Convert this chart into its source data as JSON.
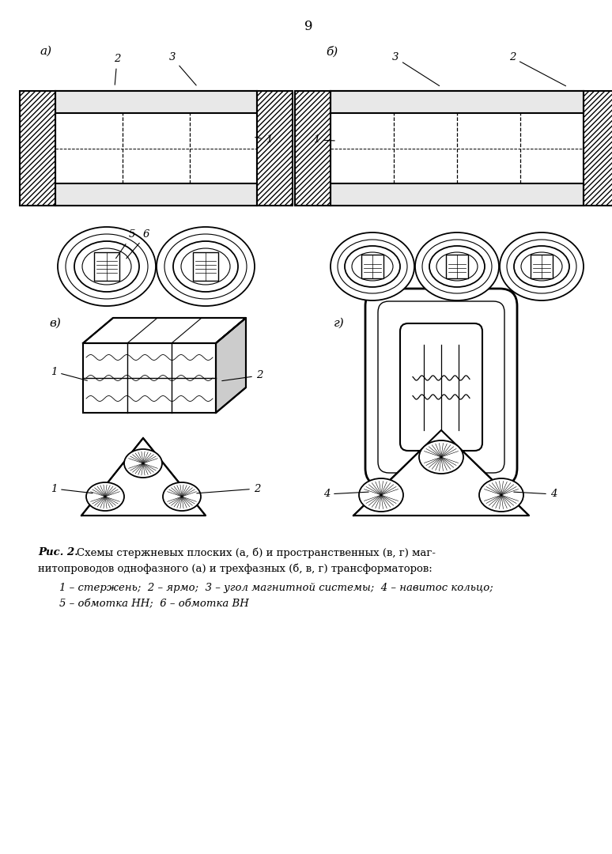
{
  "page_number": "9",
  "fig_label": "Рис. 2.",
  "caption_line1": " Схемы стержневых плоских (а, б) и пространственных (в, г) маг-",
  "caption_line2": "нитопроводов однофазного (а) и трехфазных (б, в, г) трансформаторов:",
  "legend_line1": "1 – стержень;  2 – ярмо;  3 – угол магнитной системы;  4 – навитос кольцо;",
  "legend_line2": "5 – обмотка НН;  6 – обмотка ВН",
  "bg_color": "#ffffff"
}
